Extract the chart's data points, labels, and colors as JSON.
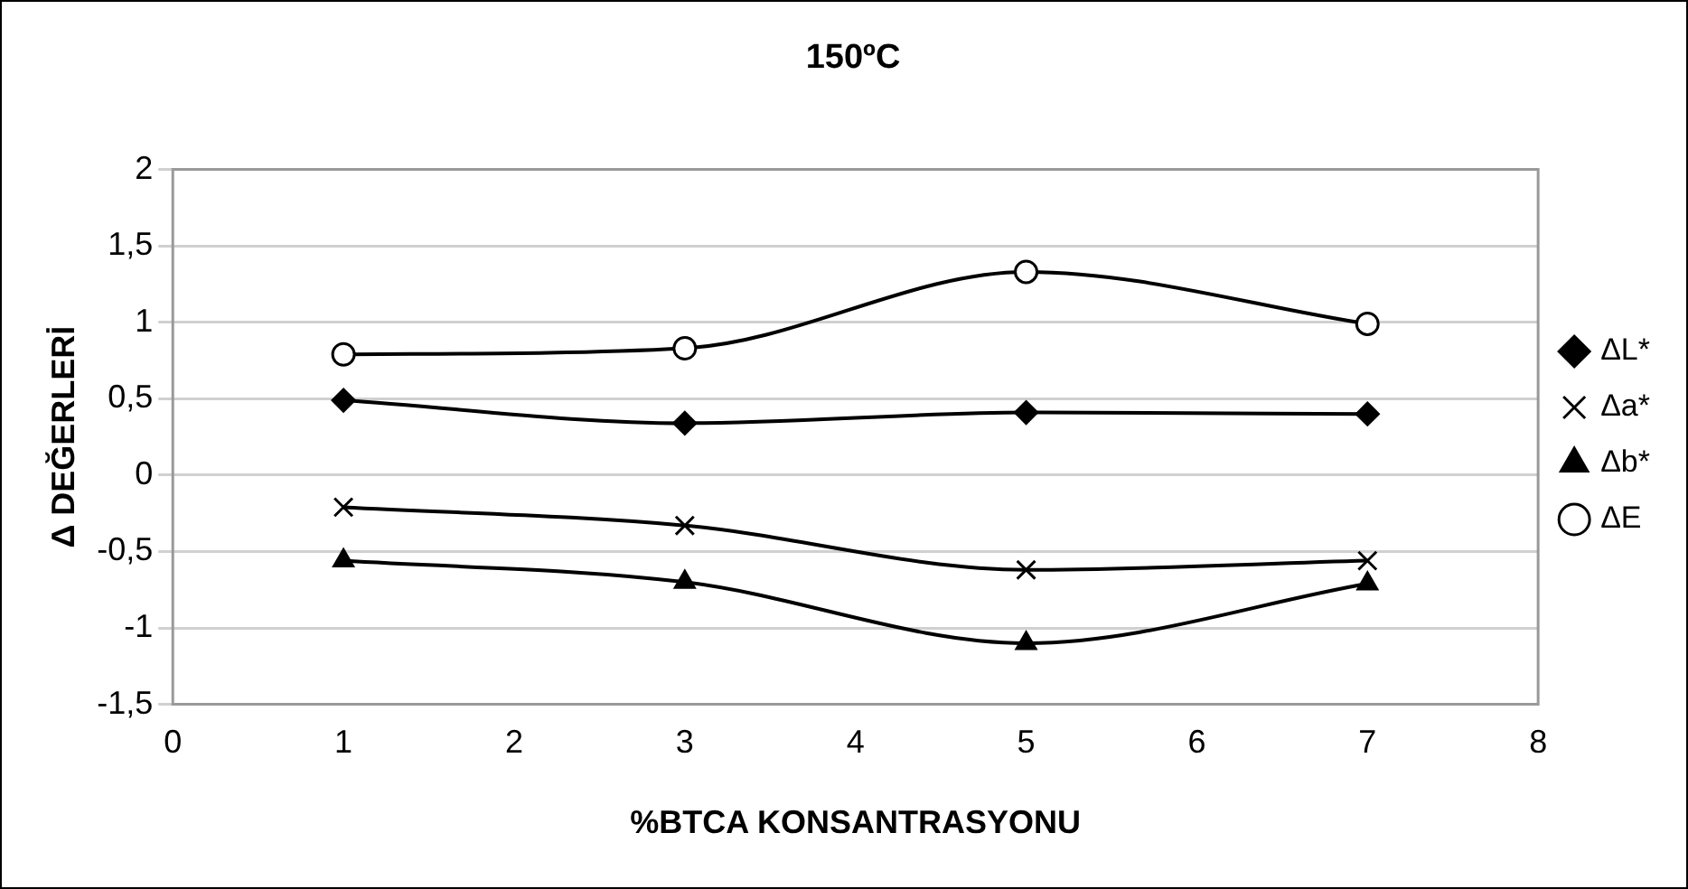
{
  "chart_data": {
    "type": "line",
    "title": "150ºC",
    "xlabel": "%BTCA KONSANTRASYONU",
    "ylabel": "Δ DEĞERLERİ",
    "x": [
      1,
      3,
      5,
      7
    ],
    "series": [
      {
        "name": "ΔL*",
        "color": "#000000",
        "marker": "diamond",
        "values": [
          0.49,
          0.34,
          0.41,
          0.4
        ]
      },
      {
        "name": "Δa*",
        "color": "#000000",
        "marker": "cross",
        "values": [
          -0.21,
          -0.33,
          -0.62,
          -0.56
        ]
      },
      {
        "name": "Δb*",
        "color": "#000000",
        "marker": "triangle",
        "values": [
          -0.56,
          -0.7,
          -1.1,
          -0.71
        ]
      },
      {
        "name": "ΔE",
        "color": "#000000",
        "marker": "circle",
        "values": [
          0.79,
          0.83,
          1.33,
          0.99
        ]
      }
    ],
    "xlim": [
      0,
      8
    ],
    "xticks": [
      0,
      1,
      2,
      3,
      4,
      5,
      6,
      7,
      8
    ],
    "ylim": [
      -1.5,
      2
    ],
    "yticks": [
      {
        "value": -1.5,
        "label": "-1,5"
      },
      -1,
      {
        "value": -0.5,
        "label": "-0,5"
      },
      0,
      {
        "value": 0.5,
        "label": "0,5"
      },
      1,
      {
        "value": 1.5,
        "label": "1,5"
      },
      2
    ],
    "grid": "y",
    "legend": "right",
    "line_style": "solid"
  }
}
